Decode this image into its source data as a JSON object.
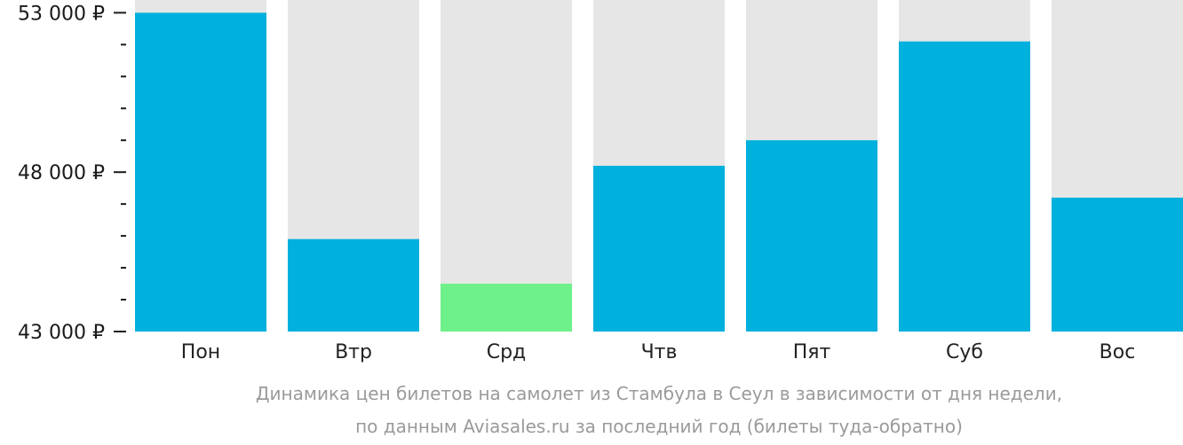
{
  "chart_data": {
    "type": "bar",
    "categories": [
      "Пон",
      "Втр",
      "Срд",
      "Чтв",
      "Пят",
      "Суб",
      "Вос"
    ],
    "values": [
      53000,
      45900,
      44500,
      48200,
      49000,
      52100,
      47200
    ],
    "highlight_index": 2,
    "ylim": [
      43000,
      53400
    ],
    "yticks": [
      {
        "value": 53000,
        "label": "53 000 ₽"
      },
      {
        "value": 48000,
        "label": "48 000 ₽"
      },
      {
        "value": 43000,
        "label": "43 000 ₽"
      }
    ],
    "minor_tick_step": 1000,
    "colors": {
      "bar": "#00b0dd",
      "highlight": "#6ef08a",
      "track": "#e6e6e6",
      "axis": "#1a1a1a",
      "caption": "#9a9a9a"
    },
    "caption": [
      "Динамика цен билетов на самолет из Стамбула в Сеул в зависимости от дня недели,",
      "по данным Aviasales.ru за последний год (билеты туда-обратно)"
    ],
    "grid": false,
    "legend": "none"
  }
}
